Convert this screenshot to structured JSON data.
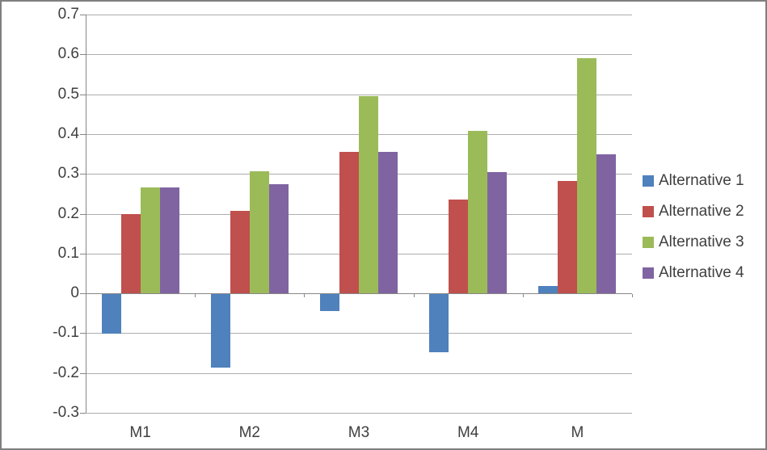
{
  "chart_data": {
    "type": "bar",
    "title": "",
    "categories": [
      "M1",
      "M2",
      "M3",
      "M4",
      "M"
    ],
    "series": [
      {
        "name": "Alternative 1",
        "color": "#4F81BD",
        "values": [
          -0.1,
          -0.185,
          -0.042,
          -0.145,
          0.018
        ]
      },
      {
        "name": "Alternative 2",
        "color": "#C0504D",
        "values": [
          0.2,
          0.207,
          0.355,
          0.235,
          0.283
        ]
      },
      {
        "name": "Alternative 3",
        "color": "#9BBB59",
        "values": [
          0.265,
          0.307,
          0.495,
          0.407,
          0.59
        ]
      },
      {
        "name": "Alternative 4",
        "color": "#8064A2",
        "values": [
          0.265,
          0.275,
          0.355,
          0.305,
          0.35
        ]
      }
    ],
    "y_axis": {
      "min": -0.3,
      "max": 0.7,
      "step": 0.1,
      "tick_labels": [
        "0.7",
        "0.6",
        "0.5",
        "0.4",
        "0.3",
        "0.2",
        "0.1",
        "0",
        "-0.1",
        "-0.2",
        "-0.3"
      ]
    },
    "x_axis": {
      "labels": [
        "M1",
        "M2",
        "M3",
        "M4",
        "M"
      ]
    },
    "legend": {
      "position": "right",
      "entries": [
        "Alternative 1",
        "Alternative 2",
        "Alternative 3",
        "Alternative 4"
      ]
    },
    "grid": true
  },
  "style": {
    "background": "#ffffff",
    "gridline_color": "#adadad",
    "axis_color": "#878787",
    "text_color": "#3f3f3f",
    "border_color": "#7f7f7f"
  }
}
